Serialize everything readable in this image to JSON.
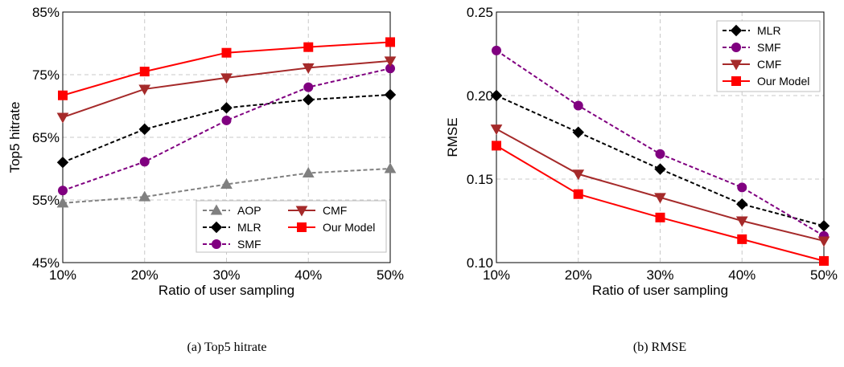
{
  "chart_data": [
    {
      "type": "line",
      "ylabel": "Top5 hitrate",
      "xlabel": "Ratio of user sampling",
      "caption": "(a)  Top5 hitrate",
      "categories": [
        "10%",
        "20%",
        "30%",
        "40%",
        "50%"
      ],
      "x": [
        10,
        20,
        30,
        40,
        50
      ],
      "xlim": [
        10,
        50
      ],
      "ylim": [
        45,
        85
      ],
      "yticks": [
        45,
        55,
        65,
        75,
        85
      ],
      "ytick_labels": [
        "45%",
        "55%",
        "65%",
        "75%",
        "85%"
      ],
      "grid": true,
      "legend_position": "bottom-right",
      "legend_columns": 2,
      "series": [
        {
          "name": "AOP",
          "values": [
            54.5,
            55.5,
            57.5,
            59.3,
            60.0
          ],
          "color": "#808080",
          "dash": "dashed",
          "marker": "triangle-up"
        },
        {
          "name": "MLR",
          "values": [
            61.0,
            66.3,
            69.7,
            71.0,
            71.8
          ],
          "color": "#000000",
          "dash": "dashed",
          "marker": "diamond"
        },
        {
          "name": "SMF",
          "values": [
            56.5,
            61.1,
            67.7,
            73.0,
            76.0
          ],
          "color": "#800080",
          "dash": "dashed",
          "marker": "circle"
        },
        {
          "name": "CMF",
          "values": [
            68.2,
            72.7,
            74.5,
            76.1,
            77.2
          ],
          "color": "#a52a2a",
          "dash": "solid",
          "marker": "triangle-down"
        },
        {
          "name": "Our Model",
          "values": [
            71.7,
            75.5,
            78.5,
            79.4,
            80.2
          ],
          "color": "#ff0000",
          "dash": "solid",
          "marker": "square"
        }
      ]
    },
    {
      "type": "line",
      "ylabel": "RMSE",
      "xlabel": "Ratio of user sampling",
      "caption": "(b)  RMSE",
      "categories": [
        "10%",
        "20%",
        "30%",
        "40%",
        "50%"
      ],
      "x": [
        10,
        20,
        30,
        40,
        50
      ],
      "xlim": [
        10,
        50
      ],
      "ylim": [
        0.1,
        0.25
      ],
      "yticks": [
        0.1,
        0.15,
        0.2,
        0.25
      ],
      "ytick_labels": [
        "0.10",
        "0.15",
        "0.20",
        "0.25"
      ],
      "grid": true,
      "legend_position": "top-right",
      "legend_columns": 1,
      "series": [
        {
          "name": "MLR",
          "values": [
            0.2,
            0.178,
            0.156,
            0.135,
            0.122
          ],
          "color": "#000000",
          "dash": "dashed",
          "marker": "diamond"
        },
        {
          "name": "SMF",
          "values": [
            0.227,
            0.194,
            0.165,
            0.145,
            0.116
          ],
          "color": "#800080",
          "dash": "dashed",
          "marker": "circle"
        },
        {
          "name": "CMF",
          "values": [
            0.18,
            0.153,
            0.139,
            0.125,
            0.113
          ],
          "color": "#a52a2a",
          "dash": "solid",
          "marker": "triangle-down"
        },
        {
          "name": "Our Model",
          "values": [
            0.17,
            0.141,
            0.127,
            0.114,
            0.101
          ],
          "color": "#ff0000",
          "dash": "solid",
          "marker": "square"
        }
      ]
    }
  ]
}
